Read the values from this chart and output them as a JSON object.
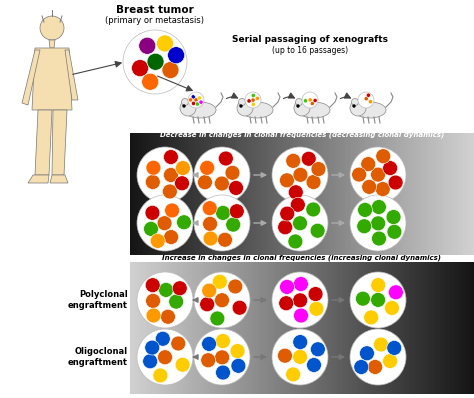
{
  "bg_color": "#f0ece0",
  "top_label_title": "Breast tumor",
  "top_label_sub": "(primary or metastasis)",
  "serial_label": "Serial passaging of xenografts",
  "serial_label_sub": "(up to 16 passages)",
  "decrease_label": "Decrease in changes in clonal frequencies (decreasing clonal dynamics)",
  "increase_label": "Increase in changes in clonal frequencies (increasing clonal dynamics)",
  "poly_label": "Polyclonal\nengraftment",
  "oligo_label": "Oligoclonal\nengraftment",
  "main_tumor_colors": [
    "#e05c00",
    "#cc0000",
    "#8b0080",
    "#ff6600",
    "#006600",
    "#ffcc00",
    "#0000cc",
    "#ff9900",
    "#cc0000",
    "#33cc00",
    "#e05c00",
    "#ff00ff",
    "#ff6600",
    "#ffcc00",
    "#cc0000",
    "#8b0080"
  ],
  "dec_poly_colors": [
    [
      "#e05c00",
      "#e05c00",
      "#e05c00",
      "#cc0000",
      "#ff6600",
      "#cc0000",
      "#ff9900",
      "#ffcc00",
      "#33aa00",
      "#ff0077",
      "#33cc00",
      "#ff6600",
      "#e05c00",
      "#cc0000",
      "#0000cc",
      "#cc0000"
    ],
    [
      "#e05c00",
      "#e05c00",
      "#e05c00",
      "#cc0000",
      "#ff6600",
      "#cc0000",
      "#ff9900",
      "#ffcc00",
      "#33aa00",
      "#33cc00",
      "#e05c00",
      "#cc0000",
      "#ffcc00",
      "#0000cc",
      "#e05c00",
      "#e05c00"
    ],
    [
      "#e05c00",
      "#e05c00",
      "#e05c00",
      "#cc0000",
      "#e05c00",
      "#cc0000",
      "#e05c00",
      "#e05c00",
      "#33aa00",
      "#33cc00",
      "#e05c00",
      "#cc0000",
      "#e05c00",
      "#33aa00",
      "#0000cc",
      "#e05c00"
    ],
    [
      "#e05c00",
      "#e05c00",
      "#e05c00",
      "#cc0000",
      "#e05c00",
      "#cc0000",
      "#e05c00",
      "#e05c00",
      "#e05c00",
      "#e05c00",
      "#e05c00",
      "#cc0000",
      "#e05c00",
      "#0000cc",
      "#e05c00",
      "#e05c00"
    ]
  ],
  "dec_oligo_colors": [
    [
      "#e05c00",
      "#e05c00",
      "#33aa00",
      "#33aa00",
      "#ff6600",
      "#cc0000",
      "#ff9900",
      "#cc0000",
      "#ff00ff",
      "#33aa00",
      "#e05c00",
      "#cc0000",
      "#e05c00",
      "#33aa00",
      "#cc0000",
      "#33aa00"
    ],
    [
      "#e05c00",
      "#e05c00",
      "#33aa00",
      "#33aa00",
      "#ff6600",
      "#cc0000",
      "#ff9900",
      "#cc0000",
      "#ff00ff",
      "#33aa00",
      "#e05c00",
      "#cc0000",
      "#e05c00",
      "#33aa00",
      "#cc0000",
      "#33aa00"
    ],
    [
      "#33aa00",
      "#33aa00",
      "#33aa00",
      "#33aa00",
      "#cc0000",
      "#cc0000",
      "#cc0000",
      "#cc0000",
      "#ff00ff",
      "#33aa00",
      "#33aa00",
      "#cc0000",
      "#33aa00",
      "#33aa00",
      "#cc0000",
      "#33aa00"
    ],
    [
      "#33aa00",
      "#33aa00",
      "#33aa00",
      "#33aa00",
      "#33aa00",
      "#33aa00",
      "#33aa00",
      "#33aa00",
      "#cc0000",
      "#33aa00",
      "#33aa00",
      "#cc0000",
      "#33aa00",
      "#33aa00",
      "#cc0000",
      "#33aa00"
    ]
  ],
  "inc_poly_colors": [
    [
      "#e05c00",
      "#e05c00",
      "#33aa00",
      "#33aa00",
      "#cc0000",
      "#cc0000",
      "#ff9900",
      "#ffcc00",
      "#0055cc",
      "#ff00ff",
      "#33aa00",
      "#ff0077",
      "#e05c00",
      "#cc0000",
      "#e05c00",
      "#33aa00"
    ],
    [
      "#e05c00",
      "#e05c00",
      "#33aa00",
      "#cc0000",
      "#cc0000",
      "#ffcc00",
      "#ff9900",
      "#ffcc00",
      "#0055cc",
      "#ff00ff",
      "#cc0000",
      "#ff0077",
      "#ffcc00",
      "#cc0000",
      "#ff00ff",
      "#33aa00"
    ],
    [
      "#cc0000",
      "#cc0000",
      "#cc0000",
      "#ff00ff",
      "#ff00ff",
      "#ffcc00",
      "#ff00ff",
      "#ffcc00",
      "#ff00ff",
      "#ff00ff",
      "#0055cc",
      "#0055cc",
      "#ffcc00",
      "#cc0000",
      "#ff00ff",
      "#33aa00"
    ],
    [
      "#33aa00",
      "#33aa00",
      "#ffcc00",
      "#ffcc00",
      "#ff00ff",
      "#ffcc00",
      "#ff00ff",
      "#ffcc00",
      "#ff00ff",
      "#0055cc",
      "#33aa00",
      "#ffcc00",
      "#ffcc00",
      "#0055cc",
      "#ff00ff",
      "#33aa00"
    ]
  ],
  "inc_oligo_colors": [
    [
      "#e05c00",
      "#e05c00",
      "#ffcc00",
      "#ffcc00",
      "#0055cc",
      "#0055cc",
      "#0055cc",
      "#0055cc",
      "#cc0000",
      "#ffcc00",
      "#e05c00",
      "#0055cc",
      "#e05c00",
      "#ffcc00",
      "#0055cc",
      "#0055cc"
    ],
    [
      "#e05c00",
      "#e05c00",
      "#ffcc00",
      "#ffcc00",
      "#0055cc",
      "#0055cc",
      "#0055cc",
      "#0055cc",
      "#cc0000",
      "#ffcc00",
      "#e05c00",
      "#0055cc",
      "#ff00ff",
      "#ffcc00",
      "#0055cc",
      "#0055cc"
    ],
    [
      "#e05c00",
      "#ffcc00",
      "#ffcc00",
      "#0055cc",
      "#0055cc",
      "#0055cc",
      "#ff00ff",
      "#0055cc",
      "#cc0000",
      "#ffcc00",
      "#0055cc",
      "#0055cc",
      "#ff00ff",
      "#ffcc00",
      "#0055cc",
      "#0055cc"
    ],
    [
      "#e05c00",
      "#ffcc00",
      "#ffcc00",
      "#0055cc",
      "#0055cc",
      "#0055cc",
      "#ff00ff",
      "#0055cc",
      "#0055cc",
      "#ffcc00",
      "#0055cc",
      "#0055cc",
      "#ff00ff",
      "#ffcc00",
      "#0055cc",
      "#0055cc"
    ]
  ],
  "figure_color": "#f5deb0",
  "figure_outline": "#777777"
}
